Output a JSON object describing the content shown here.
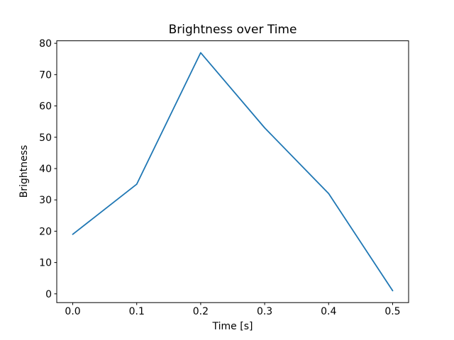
{
  "figure": {
    "background": "#ffffff",
    "spine_color": "#000000",
    "text_color": "#000000"
  },
  "chart_data": {
    "type": "line",
    "title": "Brightness over Time",
    "xlabel": "Time [s]",
    "ylabel": "Brightness",
    "x": [
      0.0,
      0.1,
      0.2,
      0.3,
      0.4,
      0.5
    ],
    "y": [
      19,
      35,
      77,
      53,
      32,
      1
    ],
    "line_color": "#1f77b4",
    "x_ticks": [
      0.0,
      0.1,
      0.2,
      0.3,
      0.4,
      0.5
    ],
    "x_tick_labels": [
      "0.0",
      "0.1",
      "0.2",
      "0.3",
      "0.4",
      "0.5"
    ],
    "y_ticks": [
      0,
      10,
      20,
      30,
      40,
      50,
      60,
      70,
      80
    ],
    "y_tick_labels": [
      "0",
      "10",
      "20",
      "30",
      "40",
      "50",
      "60",
      "70",
      "80"
    ],
    "xlim": [
      -0.025,
      0.525
    ],
    "ylim": [
      -2.8,
      80.8
    ],
    "grid": false,
    "legend": "none"
  }
}
